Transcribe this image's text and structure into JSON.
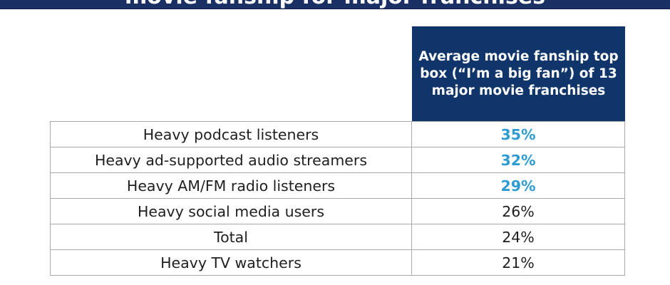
{
  "title": "movie fanship for major franchises",
  "chart_data": {
    "type": "table",
    "title": "movie fanship for major franchises",
    "column_header": "Average movie fanship top box (“I’m a big fan”) of 13 major movie franchises",
    "rows": [
      {
        "label": "Heavy podcast listeners",
        "value": 35,
        "display": "35%",
        "highlight": true
      },
      {
        "label": "Heavy ad-supported audio streamers",
        "value": 32,
        "display": "32%",
        "highlight": true
      },
      {
        "label": "Heavy AM/FM radio listeners",
        "value": 29,
        "display": "29%",
        "highlight": true
      },
      {
        "label": "Heavy social media users",
        "value": 26,
        "display": "26%",
        "highlight": false
      },
      {
        "label": "Total",
        "value": 24,
        "display": "24%",
        "highlight": false
      },
      {
        "label": "Heavy TV watchers",
        "value": 21,
        "display": "21%",
        "highlight": false
      }
    ],
    "unit": "%"
  },
  "colors": {
    "banner": "#1a2f64",
    "header_fill": "#10356b",
    "highlight_text": "#2e9bd3",
    "body_text": "#1f1f1f",
    "grid": "#a9a9a9"
  }
}
